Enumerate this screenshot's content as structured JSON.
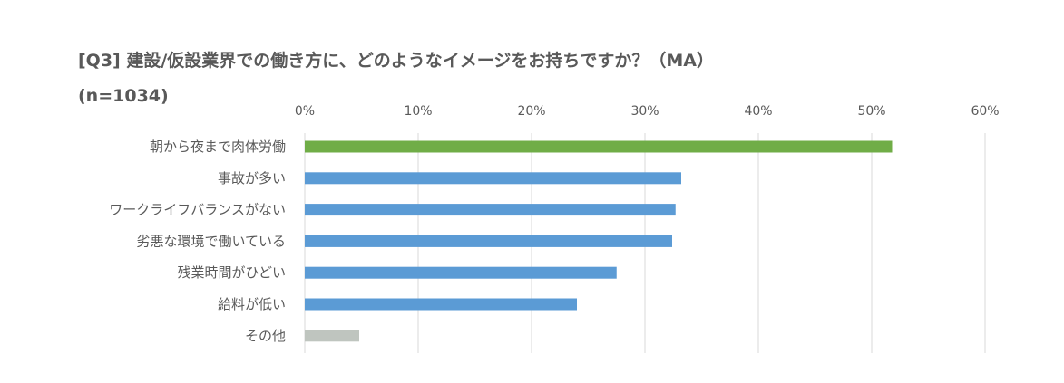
{
  "chart_data": {
    "type": "bar",
    "orientation": "horizontal",
    "title": "[Q3] 建設/仮設業界での働き方に、どのようなイメージをお持ちですか？（MA）",
    "subtitle": "(n=1034)",
    "categories": [
      "朝から夜まで肉体労働",
      "事故が多い",
      "ワークライフバランスがない",
      "劣悪な環境で働いている",
      "残業時間がひどい",
      "給料が低い",
      "その他"
    ],
    "values": [
      51.8,
      33.2,
      32.7,
      32.4,
      27.5,
      24.0,
      4.8
    ],
    "colors": [
      "#70ad47",
      "#5b9bd5",
      "#5b9bd5",
      "#5b9bd5",
      "#5b9bd5",
      "#5b9bd5",
      "#bfc5bf"
    ],
    "xlim": [
      0,
      60
    ],
    "xticks": [
      "0%",
      "10%",
      "20%",
      "30%",
      "40%",
      "50%",
      "60%"
    ],
    "xtick_values": [
      0,
      10,
      20,
      30,
      40,
      50,
      60
    ],
    "grid": true,
    "xaxis_position": "top",
    "legend": "none"
  }
}
